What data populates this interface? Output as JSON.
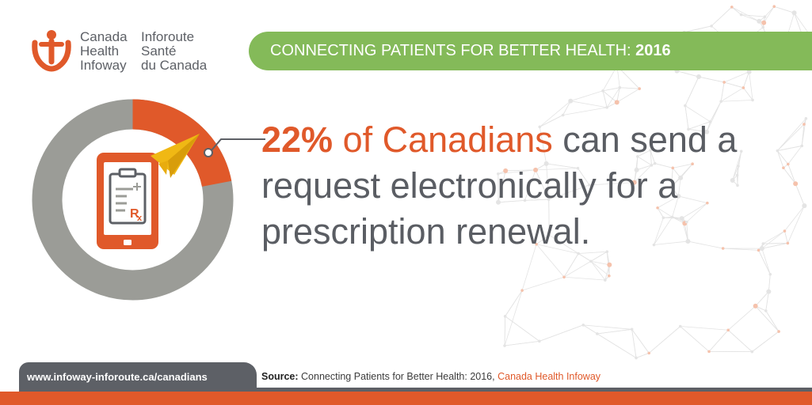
{
  "logo": {
    "line1_en": "Canada",
    "line2_en": "Health",
    "line3_en": "Infoway",
    "line1_fr": "Inforoute",
    "line2_fr": "Santé",
    "line3_fr": "du Canada",
    "icon": "infoway-person-logo-icon"
  },
  "banner": {
    "text": "CONNECTING PATIENTS FOR BETTER HEALTH: ",
    "year": "2016"
  },
  "stat": {
    "percent_label": "22%",
    "highlight_rest": " of Canadians",
    "rest": " can send a request electronically for a prescription renewal.",
    "value_fraction": 0.22
  },
  "icons": {
    "device": "tablet-prescription-icon",
    "send": "paper-plane-icon"
  },
  "footer": {
    "url": "www.infoway-inforoute.ca/canadians",
    "source_label": "Source:",
    "source_text": " Connecting Patients for Better Health: 2016, ",
    "source_org": "Canada Health Infoway"
  },
  "colors": {
    "orange": "#e0592a",
    "grey": "#9b9c97",
    "dark_grey": "#5d6066",
    "green": "#84ba59",
    "yellow": "#f0b814"
  }
}
